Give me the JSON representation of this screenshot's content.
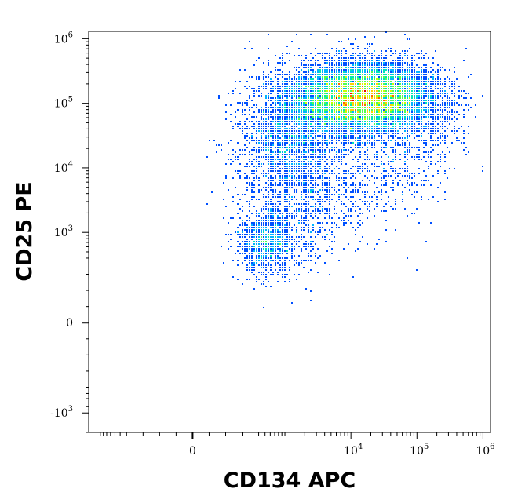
{
  "chart_data": {
    "type": "scatter",
    "style": "density pseudocolor dot plot (flow cytometry)",
    "xlabel": "CD134 APC",
    "ylabel": "CD25 PE",
    "x_scale": "biexponential (logicle)",
    "y_scale": "biexponential (logicle)",
    "xlim": [
      -1500,
      1300000
    ],
    "ylim": [
      -2000,
      1300000
    ],
    "grid": false,
    "legend": "none",
    "x_ticks": [
      {
        "value": 0,
        "base": "0",
        "exp": ""
      },
      {
        "value": 10000,
        "base": "10",
        "exp": "4"
      },
      {
        "value": 100000,
        "base": "10",
        "exp": "5"
      },
      {
        "value": 1000000,
        "base": "10",
        "exp": "6"
      }
    ],
    "y_ticks": [
      {
        "value": -1000,
        "base": "-10",
        "exp": "3"
      },
      {
        "value": 0,
        "base": "0",
        "exp": ""
      },
      {
        "value": 1000,
        "base": "10",
        "exp": "3"
      },
      {
        "value": 10000,
        "base": "10",
        "exp": "4"
      },
      {
        "value": 100000,
        "base": "10",
        "exp": "5"
      },
      {
        "value": 1000000,
        "base": "10",
        "exp": "6"
      }
    ],
    "density_colors": [
      "#0000c8",
      "#0050ff",
      "#00b4ff",
      "#00e6b4",
      "#50ff50",
      "#c8ff00",
      "#ffd200",
      "#ff6400",
      "#e60000"
    ],
    "populations": [
      {
        "name": "",
        "center_x": 15000,
        "center_y": 120000,
        "events": 9000
      },
      {
        "name": "",
        "center_x": 1200,
        "center_y": 25000,
        "events": 2200
      },
      {
        "name": "",
        "center_x": 500,
        "center_y": 700,
        "events": 900
      }
    ]
  }
}
